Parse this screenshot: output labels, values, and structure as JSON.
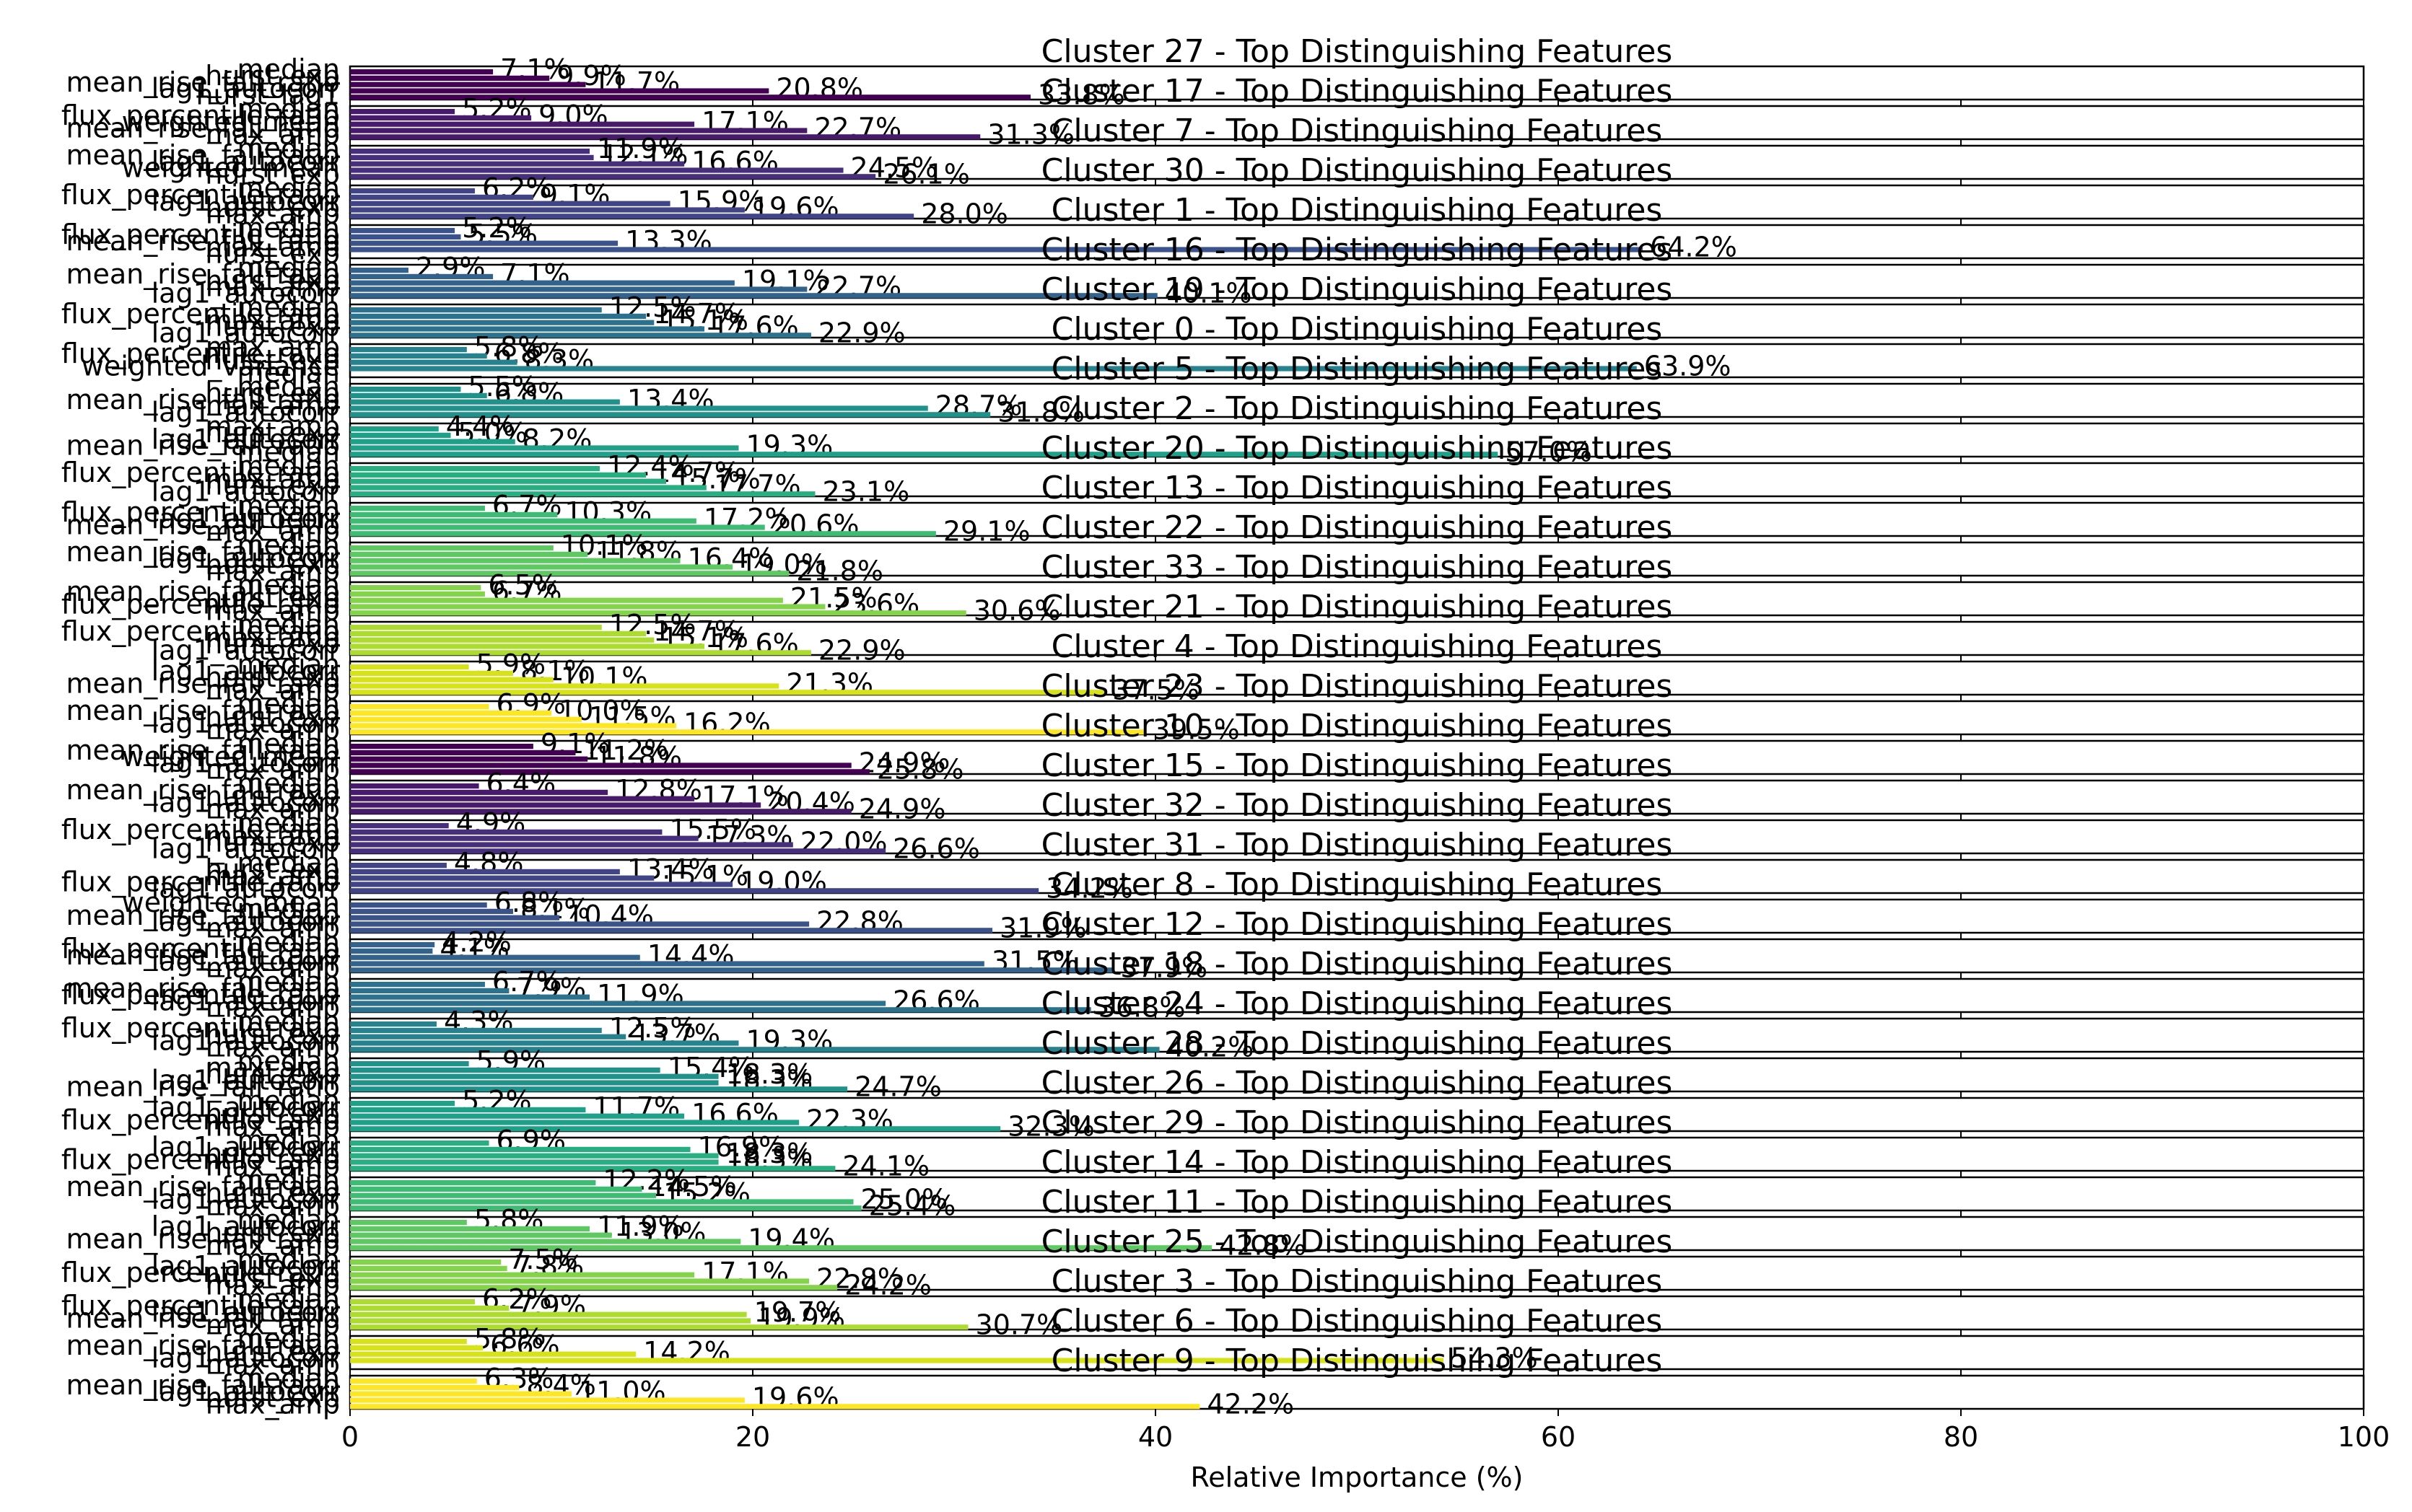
{
  "chart_data": {
    "type": "bar",
    "orientation": "horizontal",
    "xlabel": "Relative Importance (%)",
    "xlim": [
      0,
      100
    ],
    "xticks": [
      "0",
      "20",
      "40",
      "60",
      "80",
      "100"
    ],
    "grid": false,
    "legend": "none",
    "colormap": "viridis",
    "panels": [
      {
        "title": "Cluster 27 - Top Distinguishing Features",
        "color": "#440154",
        "features": [
          "median",
          "hurst_exp",
          "mean_rise_fall_ratio",
          "lag1_autocorr",
          "hurst_lag1"
        ],
        "values": [
          7.1,
          9.9,
          11.7,
          20.8,
          33.8
        ]
      },
      {
        "title": "Cluster 17 - Top Distinguishing Features",
        "color": "#481a6c",
        "features": [
          "median",
          "flux_percentile_ratio",
          "weighted_mean",
          "mean_rise_fall_ratio",
          "max_amp"
        ],
        "values": [
          5.2,
          9.0,
          17.1,
          22.7,
          31.3
        ]
      },
      {
        "title": "Cluster 7 - Top Distinguishing Features",
        "color": "#472f7d",
        "features": [
          "median",
          "mean_rise_fall_ratio",
          "lag1_autocorr",
          "weighted_mean",
          "hurst_exp"
        ],
        "values": [
          11.9,
          12.1,
          16.6,
          24.5,
          26.1
        ]
      },
      {
        "title": "Cluster 30 - Top Distinguishing Features",
        "color": "#414487",
        "features": [
          "median",
          "flux_percentile_ratio",
          "lag1_autocorr",
          "hurst_exp",
          "max_amp"
        ],
        "values": [
          6.2,
          9.1,
          15.9,
          19.6,
          28.0
        ]
      },
      {
        "title": "Cluster 1 - Top Distinguishing Features",
        "color": "#3b528b",
        "features": [
          "median",
          "flux_percentile_ratio",
          "mean_rise_fall_ratio",
          "max_amp",
          "hurst_exp"
        ],
        "values": [
          5.2,
          5.5,
          13.3,
          64.2,
          0
        ]
      },
      {
        "title": "Cluster 16 - Top Distinguishing Features",
        "color": "#33638d",
        "features": [
          "median",
          "mean_rise_fall_ratio",
          "hurst_exp",
          "max_amp",
          "lag1_autocorr"
        ],
        "values": [
          2.9,
          7.1,
          19.1,
          22.7,
          40.1
        ]
      },
      {
        "title": "Cluster 19 - Top Distinguishing Features",
        "color": "#2c728e",
        "features": [
          "median",
          "flux_percentile_ratio",
          "max_amp",
          "hurst_exp",
          "lag1_autocorr"
        ],
        "values": [
          12.5,
          14.7,
          15.1,
          17.6,
          22.9
        ]
      },
      {
        "title": "Cluster 0 - Top Distinguishing Features",
        "color": "#26828e",
        "features": [
          "max_amp",
          "flux_percentile_ratio",
          "hurst_exp",
          "weighted_variance",
          "median"
        ],
        "values": [
          5.8,
          6.8,
          8.3,
          63.9,
          0
        ]
      },
      {
        "title": "Cluster 5 - Top Distinguishing Features",
        "color": "#21918c",
        "features": [
          "median",
          "hurst_exp",
          "mean_rise_fall_ratio",
          "max_amp",
          "lag1_autocorr"
        ],
        "values": [
          5.5,
          6.8,
          13.4,
          28.7,
          31.8
        ]
      },
      {
        "title": "Cluster 2 - Top Distinguishing Features",
        "color": "#1fa088",
        "features": [
          "max_amp",
          "hurst_exp",
          "lag1_autocorr",
          "mean_rise_fall_ratio",
          "median"
        ],
        "values": [
          4.4,
          5.0,
          8.2,
          19.3,
          57.0
        ]
      },
      {
        "title": "Cluster 20 - Top Distinguishing Features",
        "color": "#28ae80",
        "features": [
          "median",
          "flux_percentile_ratio",
          "max_amp",
          "hurst_exp",
          "lag1_autocorr"
        ],
        "values": [
          12.4,
          14.7,
          15.7,
          17.7,
          23.1
        ]
      },
      {
        "title": "Cluster 13 - Top Distinguishing Features",
        "color": "#3fbc73",
        "features": [
          "median",
          "flux_percentile_ratio",
          "lag1_autocorr",
          "mean_rise_fall_ratio",
          "max_amp"
        ],
        "values": [
          6.7,
          10.3,
          17.2,
          20.6,
          29.1
        ]
      },
      {
        "title": "Cluster 22 - Top Distinguishing Features",
        "color": "#5ec962",
        "features": [
          "median",
          "mean_rise_fall_ratio",
          "lag1_autocorr",
          "hurst_exp",
          "max_amp"
        ],
        "values": [
          10.1,
          11.8,
          16.4,
          19.0,
          21.8
        ]
      },
      {
        "title": "Cluster 33 - Top Distinguishing Features",
        "color": "#84d44b",
        "features": [
          "median",
          "mean_rise_fall_ratio",
          "hurst_exp",
          "flux_percentile_ratio",
          "max_amp"
        ],
        "values": [
          6.5,
          6.7,
          21.5,
          23.6,
          30.6
        ]
      },
      {
        "title": "Cluster 21 - Top Distinguishing Features",
        "color": "#addc30",
        "features": [
          "median",
          "flux_percentile_ratio",
          "max_amp",
          "hurst_exp",
          "lag1_autocorr"
        ],
        "values": [
          12.5,
          14.7,
          15.1,
          17.6,
          22.9
        ]
      },
      {
        "title": "Cluster 4 - Top Distinguishing Features",
        "color": "#d8e219",
        "features": [
          "median",
          "lag1_autocorr",
          "hurst_exp",
          "mean_rise_fall_ratio",
          "max_amp"
        ],
        "values": [
          5.9,
          8.1,
          10.1,
          21.3,
          37.5
        ]
      },
      {
        "title": "Cluster 23 - Top Distinguishing Features",
        "color": "#fde725",
        "features": [
          "median",
          "mean_rise_fall_ratio",
          "hurst_exp",
          "lag1_autocorr",
          "max_amp"
        ],
        "values": [
          6.9,
          10.0,
          11.5,
          16.2,
          39.5
        ]
      },
      {
        "title": "Cluster 10 - Top Distinguishing Features",
        "color": "#440154",
        "features": [
          "median",
          "mean_rise_fall_ratio",
          "weighted_mean",
          "lag1_autocorr",
          "max_amp"
        ],
        "values": [
          9.1,
          11.2,
          11.8,
          24.9,
          25.8
        ]
      },
      {
        "title": "Cluster 15 - Top Distinguishing Features",
        "color": "#481a6c",
        "features": [
          "median",
          "mean_rise_fall_ratio",
          "hurst_exp",
          "lag1_autocorr",
          "max_amp"
        ],
        "values": [
          6.4,
          12.8,
          17.1,
          20.4,
          24.9
        ]
      },
      {
        "title": "Cluster 32 - Top Distinguishing Features",
        "color": "#472f7d",
        "features": [
          "median",
          "flux_percentile_ratio",
          "max_amp",
          "hurst_exp",
          "lag1_autocorr"
        ],
        "values": [
          4.9,
          15.5,
          17.3,
          22.0,
          26.6
        ]
      },
      {
        "title": "Cluster 31 - Top Distinguishing Features",
        "color": "#414487",
        "features": [
          "median",
          "hurst_exp",
          "max_amp",
          "flux_percentile_ratio",
          "lag1_autocorr"
        ],
        "values": [
          4.8,
          13.4,
          15.1,
          19.0,
          34.2
        ]
      },
      {
        "title": "Cluster 8 - Top Distinguishing Features",
        "color": "#3b528b",
        "features": [
          "weighted_mean",
          "median",
          "mean_rise_fall_ratio",
          "lag1_autocorr",
          "max_amp"
        ],
        "values": [
          6.8,
          8.1,
          10.4,
          22.8,
          31.9
        ]
      },
      {
        "title": "Cluster 12 - Top Distinguishing Features",
        "color": "#33638d",
        "features": [
          "median",
          "flux_percentile_ratio",
          "mean_rise_fall_ratio",
          "lag1_autocorr",
          "max_amp"
        ],
        "values": [
          4.2,
          4.1,
          14.4,
          31.5,
          37.9
        ]
      },
      {
        "title": "Cluster 18 - Top Distinguishing Features",
        "color": "#2c728e",
        "features": [
          "median",
          "mean_rise_fall_ratio",
          "flux_percentile_ratio",
          "lag1_autocorr",
          "max_amp"
        ],
        "values": [
          6.7,
          7.9,
          11.9,
          26.6,
          36.8
        ]
      },
      {
        "title": "Cluster 24 - Top Distinguishing Features",
        "color": "#26828e",
        "features": [
          "median",
          "flux_percentile_ratio",
          "hurst_exp",
          "lag1_autocorr",
          "max_amp"
        ],
        "values": [
          4.3,
          12.5,
          13.7,
          19.3,
          40.2
        ]
      },
      {
        "title": "Cluster 28 - Top Distinguishing Features",
        "color": "#21918c",
        "features": [
          "median",
          "max_amp",
          "hurst_exp",
          "lag1_autocorr",
          "mean_rise_fall_ratio"
        ],
        "values": [
          5.9,
          15.4,
          18.3,
          18.3,
          24.7
        ]
      },
      {
        "title": "Cluster 26 - Top Distinguishing Features",
        "color": "#1fa088",
        "features": [
          "median",
          "lag1_autocorr",
          "hurst_exp",
          "flux_percentile_ratio",
          "max_amp"
        ],
        "values": [
          5.2,
          11.7,
          16.6,
          22.3,
          32.3
        ]
      },
      {
        "title": "Cluster 29 - Top Distinguishing Features",
        "color": "#28ae80",
        "features": [
          "median",
          "lag1_autocorr",
          "hurst_exp",
          "flux_percentile_ratio",
          "max_amp"
        ],
        "values": [
          6.9,
          16.9,
          18.3,
          18.3,
          24.1
        ]
      },
      {
        "title": "Cluster 14 - Top Distinguishing Features",
        "color": "#3fbc73",
        "features": [
          "median",
          "mean_rise_fall_ratio",
          "hurst_exp",
          "lag1_autocorr",
          "max_amp"
        ],
        "values": [
          12.2,
          14.5,
          15.2,
          25.0,
          25.4
        ]
      },
      {
        "title": "Cluster 11 - Top Distinguishing Features",
        "color": "#5ec962",
        "features": [
          "median",
          "lag1_autocorr",
          "hurst_exp",
          "mean_rise_fall_ratio",
          "max_amp"
        ],
        "values": [
          5.8,
          11.9,
          13.0,
          19.4,
          42.8
        ]
      },
      {
        "title": "Cluster 25 - Top Distinguishing Features",
        "color": "#84d44b",
        "features": [
          "median",
          "lag1_autocorr",
          "flux_percentile_ratio",
          "hurst_exp",
          "max_amp"
        ],
        "values": [
          7.5,
          7.8,
          17.1,
          22.8,
          24.2
        ]
      },
      {
        "title": "Cluster 3 - Top Distinguishing Features",
        "color": "#addc30",
        "features": [
          "median",
          "flux_percentile_ratio",
          "lag1_autocorr",
          "mean_rise_fall_ratio",
          "max_amp"
        ],
        "values": [
          6.2,
          7.9,
          19.7,
          19.9,
          30.7
        ]
      },
      {
        "title": "Cluster 6 - Top Distinguishing Features",
        "color": "#d8e219",
        "features": [
          "median",
          "mean_rise_fall_ratio",
          "hurst_exp",
          "lag1_autocorr",
          "max_amp"
        ],
        "values": [
          5.8,
          6.6,
          14.2,
          54.3,
          0
        ]
      },
      {
        "title": "Cluster 9 - Top Distinguishing Features",
        "color": "#fde725",
        "features": [
          "median",
          "mean_rise_fall_ratio",
          "lag1_autocorr",
          "hurst_exp",
          "max_amp"
        ],
        "values": [
          6.3,
          8.4,
          11.0,
          19.6,
          42.2
        ]
      }
    ]
  }
}
